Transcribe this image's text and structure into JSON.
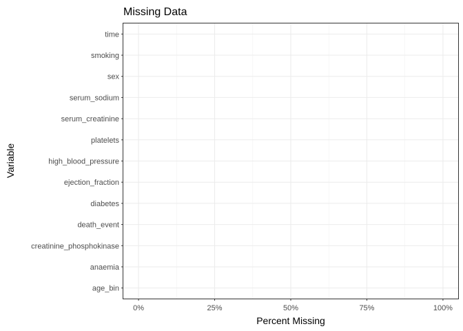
{
  "chart_data": {
    "type": "bar",
    "orientation": "horizontal",
    "title": "Missing Data",
    "xlabel": "Percent Missing",
    "ylabel": "Variable",
    "categories": [
      "time",
      "smoking",
      "sex",
      "serum_sodium",
      "serum_creatinine",
      "platelets",
      "high_blood_pressure",
      "ejection_fraction",
      "diabetes",
      "death_event",
      "creatinine_phosphokinase",
      "anaemia",
      "age_bin"
    ],
    "values": [
      0,
      0,
      0,
      0,
      0,
      0,
      0,
      0,
      0,
      0,
      0,
      0,
      0
    ],
    "xlim": [
      -0.05,
      1.05
    ],
    "x_ticks": [
      0,
      0.25,
      0.5,
      0.75,
      1
    ],
    "x_tick_labels": [
      "0%",
      "25%",
      "50%",
      "75%",
      "100%"
    ],
    "grid": true,
    "legend": "none"
  }
}
